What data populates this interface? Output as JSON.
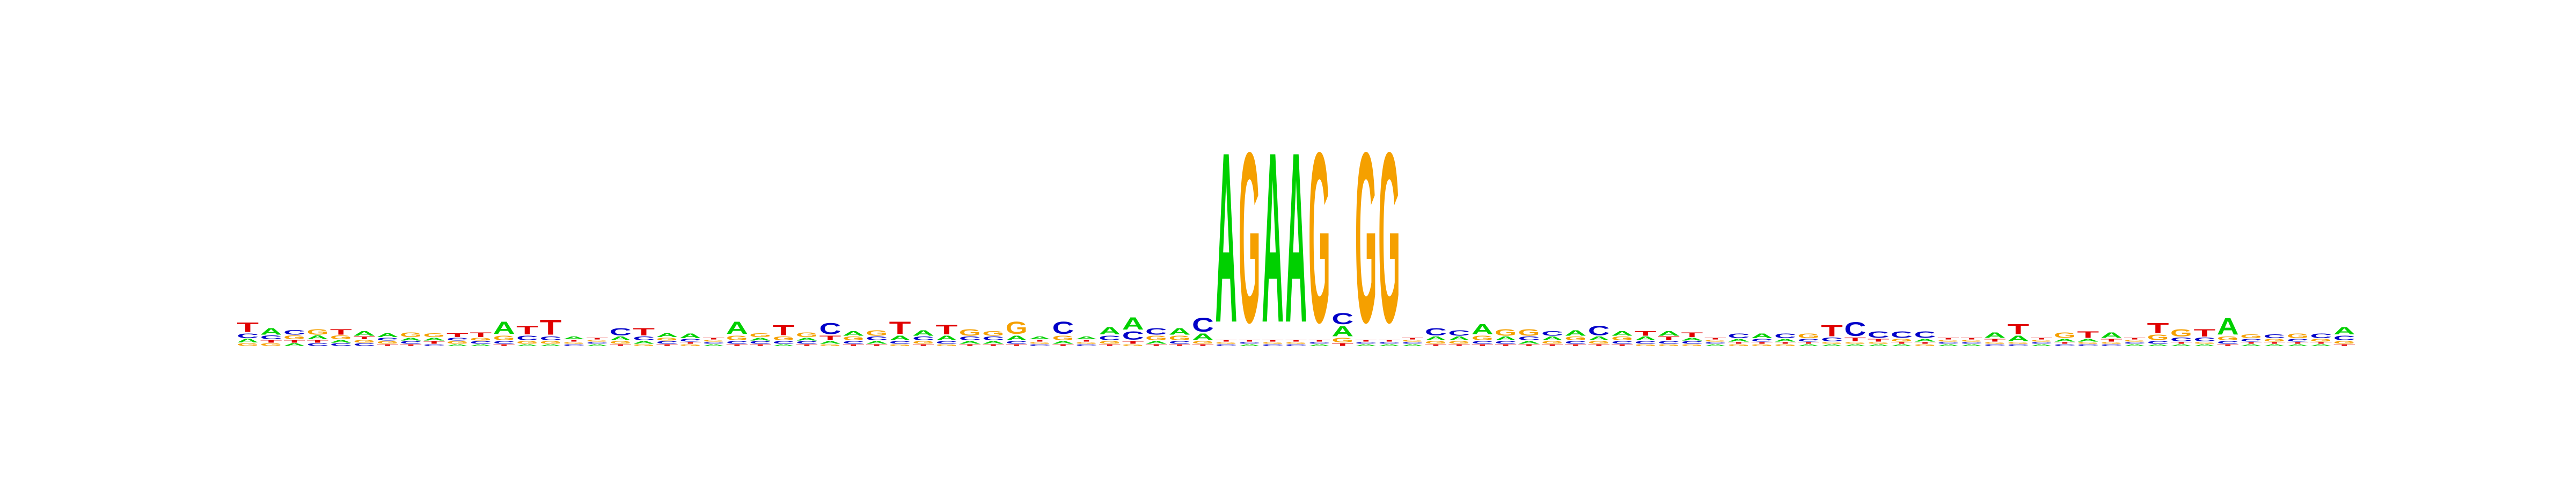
{
  "chart_data": {
    "type": "sequence-logo",
    "alphabet": [
      "A",
      "C",
      "G",
      "T"
    ],
    "colors": {
      "A": "#00d000",
      "C": "#0000c8",
      "G": "#f5a000",
      "T": "#e00000"
    },
    "ylim": [
      0,
      2
    ],
    "positions": [
      {
        "T": 0.1,
        "C": 0.05,
        "A": 0.04,
        "G": 0.03
      },
      {
        "A": 0.07,
        "C": 0.04,
        "G": 0.03,
        "T": 0.03
      },
      {
        "C": 0.05,
        "G": 0.04,
        "A": 0.03,
        "T": 0.03
      },
      {
        "G": 0.06,
        "A": 0.04,
        "C": 0.03,
        "T": 0.03
      },
      {
        "T": 0.06,
        "G": 0.04,
        "C": 0.03,
        "A": 0.03
      },
      {
        "A": 0.05,
        "C": 0.03,
        "G": 0.03,
        "T": 0.03
      },
      {
        "A": 0.04,
        "G": 0.03,
        "C": 0.03,
        "T": 0.02
      },
      {
        "G": 0.05,
        "C": 0.03,
        "A": 0.03,
        "T": 0.02
      },
      {
        "G": 0.04,
        "T": 0.03,
        "A": 0.03,
        "C": 0.02
      },
      {
        "T": 0.04,
        "G": 0.03,
        "C": 0.03,
        "A": 0.02
      },
      {
        "T": 0.05,
        "C": 0.03,
        "G": 0.03,
        "A": 0.02
      },
      {
        "A": 0.13,
        "G": 0.05,
        "C": 0.03,
        "T": 0.02
      },
      {
        "T": 0.09,
        "C": 0.05,
        "G": 0.03,
        "A": 0.02
      },
      {
        "T": 0.16,
        "C": 0.04,
        "G": 0.03,
        "A": 0.02
      },
      {
        "A": 0.03,
        "C": 0.02,
        "G": 0.02,
        "T": 0.02
      },
      {
        "A": 0.02,
        "C": 0.02,
        "G": 0.02,
        "T": 0.02
      },
      {
        "C": 0.08,
        "A": 0.04,
        "G": 0.03,
        "T": 0.02
      },
      {
        "T": 0.08,
        "C": 0.04,
        "A": 0.03,
        "G": 0.02
      },
      {
        "A": 0.04,
        "C": 0.03,
        "G": 0.03,
        "T": 0.02
      },
      {
        "A": 0.05,
        "C": 0.03,
        "G": 0.02,
        "T": 0.02
      },
      {
        "A": 0.02,
        "C": 0.02,
        "G": 0.02,
        "T": 0.02
      },
      {
        "A": 0.13,
        "G": 0.05,
        "C": 0.03,
        "T": 0.02
      },
      {
        "G": 0.04,
        "C": 0.03,
        "A": 0.03,
        "T": 0.02
      },
      {
        "T": 0.11,
        "G": 0.04,
        "C": 0.03,
        "A": 0.02
      },
      {
        "G": 0.05,
        "C": 0.03,
        "A": 0.03,
        "T": 0.02
      },
      {
        "C": 0.12,
        "T": 0.05,
        "A": 0.03,
        "G": 0.02
      },
      {
        "A": 0.05,
        "G": 0.04,
        "C": 0.03,
        "T": 0.02
      },
      {
        "G": 0.06,
        "C": 0.04,
        "A": 0.03,
        "T": 0.02
      },
      {
        "T": 0.13,
        "A": 0.05,
        "C": 0.03,
        "G": 0.02
      },
      {
        "A": 0.06,
        "C": 0.04,
        "G": 0.03,
        "T": 0.02
      },
      {
        "T": 0.1,
        "A": 0.05,
        "C": 0.03,
        "G": 0.02
      },
      {
        "G": 0.07,
        "C": 0.04,
        "A": 0.03,
        "T": 0.02
      },
      {
        "G": 0.05,
        "C": 0.04,
        "A": 0.03,
        "T": 0.02
      },
      {
        "G": 0.13,
        "A": 0.05,
        "C": 0.03,
        "T": 0.02
      },
      {
        "A": 0.03,
        "C": 0.02,
        "G": 0.02,
        "T": 0.02
      },
      {
        "C": 0.13,
        "G": 0.05,
        "A": 0.03,
        "T": 0.02
      },
      {
        "A": 0.03,
        "C": 0.02,
        "G": 0.02,
        "T": 0.02
      },
      {
        "A": 0.08,
        "C": 0.05,
        "G": 0.03,
        "T": 0.02
      },
      {
        "C": 0.09,
        "A": 0.13,
        "T": 0.03,
        "G": 0.02
      },
      {
        "C": 0.07,
        "G": 0.05,
        "A": 0.03,
        "T": 0.02
      },
      {
        "A": 0.07,
        "G": 0.05,
        "C": 0.03,
        "T": 0.02
      },
      {
        "C": 0.15,
        "A": 0.07,
        "G": 0.03,
        "T": 0.02
      },
      {
        "A": 1.84,
        "C": 0.02,
        "G": 0.02,
        "T": 0.02
      },
      {
        "G": 1.84,
        "A": 0.02,
        "C": 0.02,
        "T": 0.02
      },
      {
        "A": 1.84,
        "C": 0.02,
        "G": 0.02,
        "T": 0.02
      },
      {
        "A": 1.84,
        "C": 0.02,
        "G": 0.02,
        "T": 0.02
      },
      {
        "G": 1.84,
        "A": 0.02,
        "C": 0.02,
        "T": 0.02
      },
      {
        "C": 0.12,
        "A": 0.11,
        "G": 0.05,
        "T": 0.03
      },
      {
        "G": 1.84,
        "A": 0.02,
        "C": 0.02,
        "T": 0.02
      },
      {
        "G": 1.84,
        "A": 0.02,
        "C": 0.02,
        "T": 0.02
      },
      {
        "A": 0.02,
        "C": 0.02,
        "G": 0.02,
        "T": 0.02
      },
      {
        "C": 0.08,
        "A": 0.04,
        "G": 0.03,
        "T": 0.02
      },
      {
        "C": 0.06,
        "A": 0.04,
        "G": 0.03,
        "T": 0.02
      },
      {
        "A": 0.11,
        "G": 0.05,
        "C": 0.03,
        "T": 0.02
      },
      {
        "G": 0.07,
        "A": 0.04,
        "C": 0.03,
        "T": 0.02
      },
      {
        "G": 0.07,
        "C": 0.04,
        "A": 0.03,
        "T": 0.02
      },
      {
        "C": 0.05,
        "A": 0.04,
        "G": 0.03,
        "T": 0.02
      },
      {
        "A": 0.06,
        "G": 0.04,
        "C": 0.03,
        "T": 0.02
      },
      {
        "C": 0.1,
        "A": 0.04,
        "G": 0.03,
        "T": 0.02
      },
      {
        "A": 0.05,
        "G": 0.04,
        "C": 0.03,
        "T": 0.02
      },
      {
        "T": 0.05,
        "A": 0.04,
        "C": 0.03,
        "G": 0.02
      },
      {
        "A": 0.05,
        "T": 0.04,
        "C": 0.03,
        "G": 0.02
      },
      {
        "T": 0.05,
        "C": 0.03,
        "A": 0.03,
        "G": 0.02
      },
      {
        "A": 0.02,
        "C": 0.02,
        "G": 0.02,
        "T": 0.02
      },
      {
        "C": 0.05,
        "A": 0.03,
        "G": 0.02,
        "T": 0.02
      },
      {
        "A": 0.05,
        "C": 0.03,
        "G": 0.02,
        "T": 0.02
      },
      {
        "C": 0.05,
        "A": 0.03,
        "G": 0.02,
        "T": 0.02
      },
      {
        "G": 0.05,
        "C": 0.03,
        "A": 0.02,
        "T": 0.02
      },
      {
        "T": 0.12,
        "C": 0.04,
        "A": 0.02,
        "G": 0.02
      },
      {
        "C": 0.15,
        "T": 0.04,
        "A": 0.02,
        "G": 0.02
      },
      {
        "C": 0.07,
        "T": 0.03,
        "A": 0.02,
        "G": 0.02
      },
      {
        "C": 0.07,
        "G": 0.03,
        "A": 0.02,
        "T": 0.02
      },
      {
        "C": 0.07,
        "A": 0.03,
        "G": 0.02,
        "T": 0.02
      },
      {
        "A": 0.02,
        "C": 0.02,
        "G": 0.02,
        "T": 0.02
      },
      {
        "A": 0.02,
        "C": 0.02,
        "G": 0.02,
        "T": 0.02
      },
      {
        "A": 0.06,
        "T": 0.03,
        "C": 0.02,
        "G": 0.02
      },
      {
        "T": 0.11,
        "A": 0.06,
        "C": 0.02,
        "G": 0.02
      },
      {
        "A": 0.02,
        "C": 0.02,
        "G": 0.02,
        "T": 0.02
      },
      {
        "G": 0.06,
        "A": 0.03,
        "C": 0.02,
        "T": 0.02
      },
      {
        "T": 0.07,
        "A": 0.03,
        "C": 0.02,
        "G": 0.02
      },
      {
        "A": 0.06,
        "T": 0.03,
        "C": 0.02,
        "G": 0.02
      },
      {
        "A": 0.02,
        "C": 0.02,
        "G": 0.02,
        "T": 0.02
      },
      {
        "T": 0.11,
        "G": 0.06,
        "C": 0.03,
        "A": 0.02
      },
      {
        "G": 0.08,
        "C": 0.04,
        "A": 0.02,
        "T": 0.02
      },
      {
        "T": 0.08,
        "C": 0.04,
        "A": 0.02,
        "G": 0.02
      },
      {
        "A": 0.18,
        "G": 0.04,
        "C": 0.03,
        "T": 0.02
      },
      {
        "G": 0.04,
        "C": 0.03,
        "A": 0.02,
        "T": 0.02
      },
      {
        "C": 0.04,
        "G": 0.03,
        "A": 0.02,
        "T": 0.02
      },
      {
        "G": 0.05,
        "C": 0.03,
        "A": 0.02,
        "T": 0.02
      },
      {
        "C": 0.05,
        "G": 0.03,
        "A": 0.02,
        "T": 0.02
      },
      {
        "A": 0.08,
        "C": 0.05,
        "G": 0.03,
        "T": 0.02
      }
    ]
  }
}
